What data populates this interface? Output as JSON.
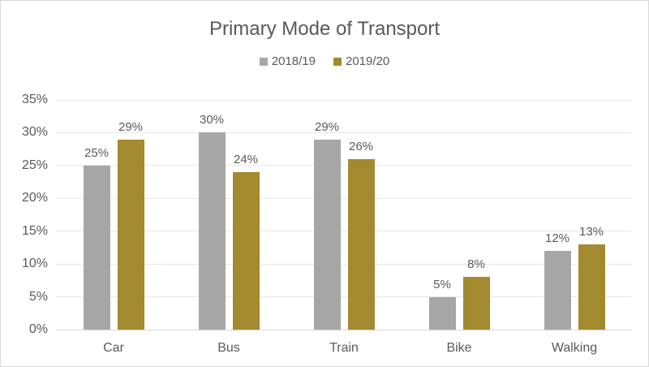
{
  "chart_data": {
    "type": "bar",
    "title": "Primary Mode of Transport",
    "categories": [
      "Car",
      "Bus",
      "Train",
      "Bike",
      "Walking"
    ],
    "series": [
      {
        "name": "2018/19",
        "color": "#A6A6A6",
        "values": [
          25,
          30,
          29,
          5,
          12
        ]
      },
      {
        "name": "2019/20",
        "color": "#A48A2E",
        "values": [
          29,
          24,
          26,
          8,
          13
        ]
      }
    ],
    "value_suffix": "%",
    "ylim": [
      0,
      35
    ],
    "y_tick_step": 5,
    "y_tick_labels": [
      "0%",
      "5%",
      "10%",
      "15%",
      "20%",
      "25%",
      "30%",
      "35%"
    ],
    "grid": true,
    "legend_position": "top",
    "data_labels": true,
    "colors": {
      "text": "#595959",
      "gridline": "#E6E6E6",
      "axisline": "#D9D9D9",
      "border": "#D9D9D9",
      "background": "#FFFFFF"
    }
  }
}
